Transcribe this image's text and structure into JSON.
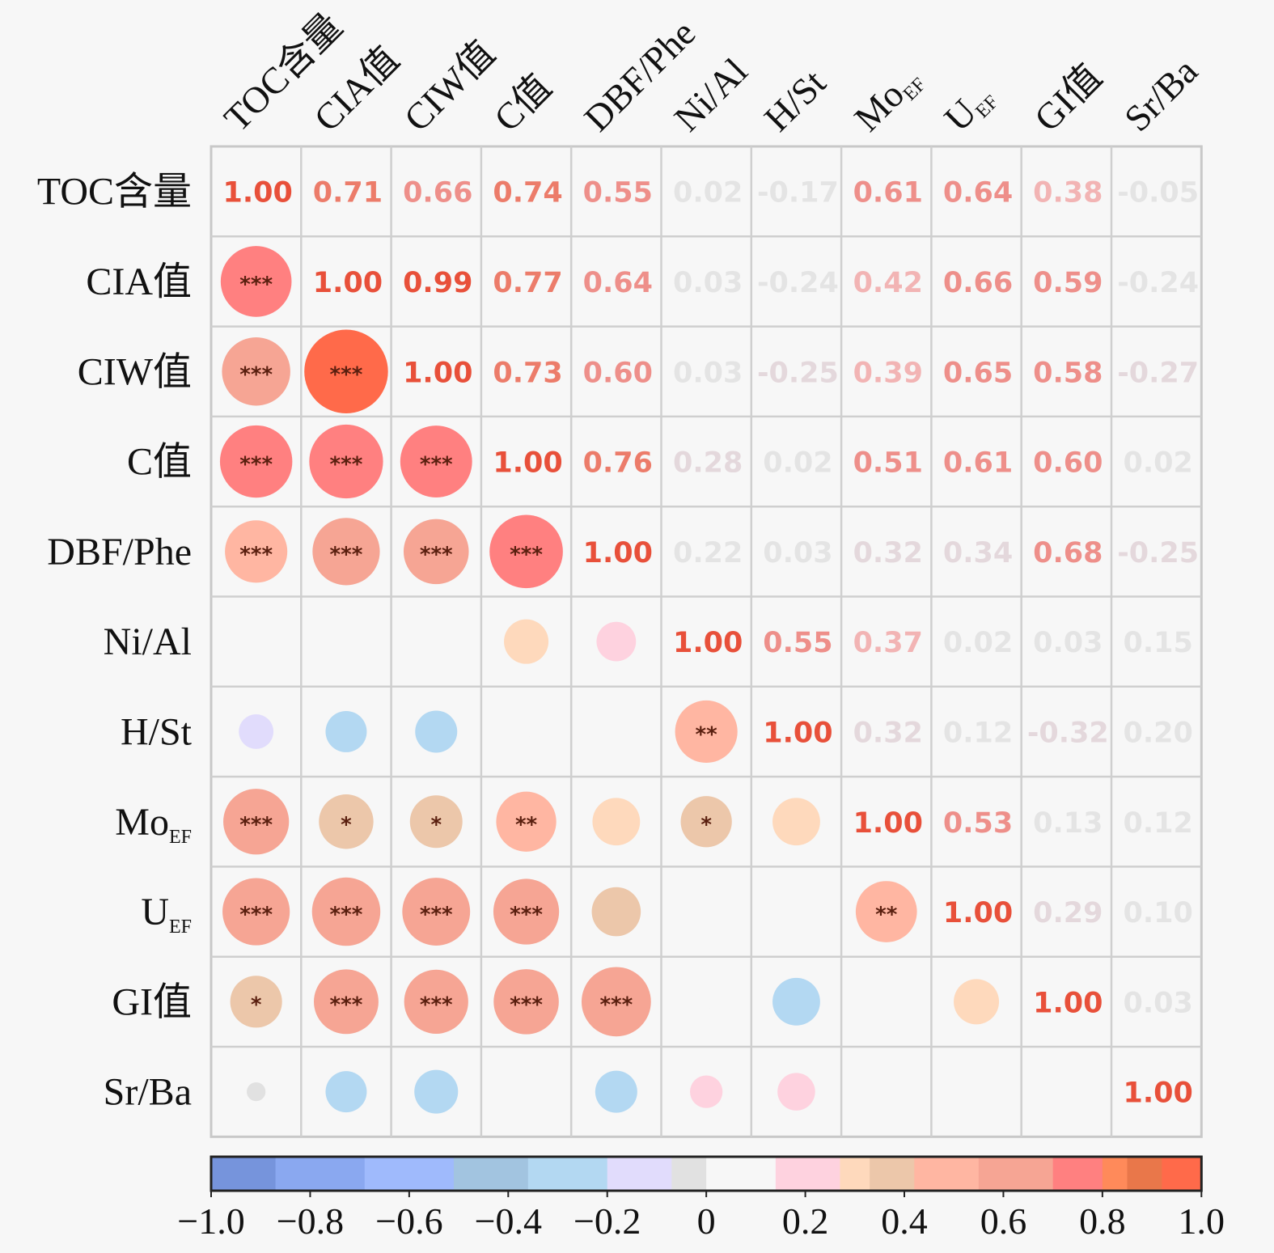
{
  "chart_data": {
    "type": "heatmap",
    "subtype": "correlation-matrix",
    "title": "",
    "variables": [
      {
        "label": "TOC含量",
        "main": "TOC含量",
        "sub": ""
      },
      {
        "label": "CIA值",
        "main": "CIA值",
        "sub": ""
      },
      {
        "label": "CIW值",
        "main": "CIW值",
        "sub": ""
      },
      {
        "label": "C值",
        "main": "C值",
        "sub": ""
      },
      {
        "label": "DBF/Phe",
        "main": "DBF/Phe",
        "sub": ""
      },
      {
        "label": "Ni/Al",
        "main": "Ni/Al",
        "sub": ""
      },
      {
        "label": "H/St",
        "main": "H/St",
        "sub": ""
      },
      {
        "label": "MoEF",
        "main": "Mo",
        "sub": "EF"
      },
      {
        "label": "UEF",
        "main": "U",
        "sub": "EF"
      },
      {
        "label": "GI值",
        "main": "GI值",
        "sub": ""
      },
      {
        "label": "Sr/Ba",
        "main": "Sr/Ba",
        "sub": ""
      }
    ],
    "matrix": [
      [
        1.0,
        0.71,
        0.66,
        0.74,
        0.55,
        0.02,
        -0.17,
        0.61,
        0.64,
        0.38,
        -0.05
      ],
      [
        0.71,
        1.0,
        0.99,
        0.77,
        0.64,
        0.03,
        -0.24,
        0.42,
        0.66,
        0.59,
        -0.24
      ],
      [
        0.66,
        0.99,
        1.0,
        0.73,
        0.6,
        0.03,
        -0.25,
        0.39,
        0.65,
        0.58,
        -0.27
      ],
      [
        0.74,
        0.77,
        0.73,
        1.0,
        0.76,
        0.28,
        0.02,
        0.51,
        0.61,
        0.6,
        0.02
      ],
      [
        0.55,
        0.64,
        0.6,
        0.76,
        1.0,
        0.22,
        0.03,
        0.32,
        0.34,
        0.68,
        -0.25
      ],
      [
        0.02,
        0.03,
        0.03,
        0.28,
        0.22,
        1.0,
        0.55,
        0.37,
        0.02,
        0.03,
        0.15
      ],
      [
        -0.17,
        -0.24,
        -0.25,
        0.02,
        0.03,
        0.55,
        1.0,
        0.32,
        0.12,
        -0.32,
        0.2
      ],
      [
        0.61,
        0.42,
        0.39,
        0.51,
        0.32,
        0.37,
        0.32,
        1.0,
        0.53,
        0.13,
        0.12
      ],
      [
        0.64,
        0.66,
        0.65,
        0.61,
        0.34,
        0.02,
        0.12,
        0.53,
        1.0,
        0.29,
        0.1
      ],
      [
        0.38,
        0.59,
        0.58,
        0.6,
        0.68,
        0.03,
        -0.32,
        0.13,
        0.29,
        1.0,
        0.03
      ],
      [
        -0.05,
        -0.24,
        -0.27,
        0.02,
        -0.25,
        0.15,
        0.2,
        0.12,
        0.1,
        0.03,
        1.0
      ]
    ],
    "significance": [
      [
        "",
        "",
        "",
        "",
        "",
        "",
        "",
        "",
        "",
        "",
        ""
      ],
      [
        "***",
        "",
        "",
        "",
        "",
        "",
        "",
        "",
        "",
        "",
        ""
      ],
      [
        "***",
        "***",
        "",
        "",
        "",
        "",
        "",
        "",
        "",
        "",
        ""
      ],
      [
        "***",
        "***",
        "***",
        "",
        "",
        "",
        "",
        "",
        "",
        "",
        ""
      ],
      [
        "***",
        "***",
        "***",
        "***",
        "",
        "",
        "",
        "",
        "",
        "",
        ""
      ],
      [
        "",
        "",
        "",
        "",
        "",
        "",
        "",
        "",
        "",
        "",
        ""
      ],
      [
        "",
        "",
        "",
        "",
        "",
        "**",
        "",
        "",
        "",
        "",
        ""
      ],
      [
        "***",
        "*",
        "*",
        "**",
        "",
        "*",
        "",
        "",
        "",
        "",
        ""
      ],
      [
        "***",
        "***",
        "***",
        "***",
        "",
        "",
        "",
        "**",
        "",
        "",
        ""
      ],
      [
        "*",
        "***",
        "***",
        "***",
        "***",
        "",
        "",
        "",
        "",
        "",
        ""
      ],
      [
        "",
        "",
        "",
        "",
        "",
        "",
        "",
        "",
        "",
        "",
        ""
      ]
    ],
    "upper_triangle": "numeric-values",
    "lower_triangle": "circles-sized-by-abs-r-with-significance-stars",
    "value_format": "0.00",
    "colorbar": {
      "range": [
        -1.0,
        1.0
      ],
      "ticks": [
        -1.0,
        -0.8,
        -0.6,
        -0.4,
        -0.2,
        0,
        0.2,
        0.4,
        0.6,
        0.8,
        1.0
      ],
      "tick_labels": [
        "−1.0",
        "−0.8",
        "−0.6",
        "−0.4",
        "−0.2",
        "0",
        "0.2",
        "0.4",
        "0.6",
        "0.8",
        "1.0"
      ],
      "placement": "bottom",
      "bins": [
        {
          "from": -1.0,
          "to": -0.87,
          "color": "#7694dc"
        },
        {
          "from": -0.87,
          "to": -0.69,
          "color": "#8aa8f0"
        },
        {
          "from": -0.69,
          "to": -0.51,
          "color": "#9fbafc"
        },
        {
          "from": -0.51,
          "to": -0.51,
          "color": "#9fbafc"
        },
        {
          "from": -0.51,
          "to": -0.36,
          "color": "#a2c4e0"
        },
        {
          "from": -0.36,
          "to": -0.2,
          "color": "#b3d8f2"
        },
        {
          "from": -0.2,
          "to": -0.07,
          "color": "#e1dcfc"
        },
        {
          "from": -0.07,
          "to": 0.0,
          "color": "#e1e1e1"
        },
        {
          "from": 0.0,
          "to": 0.14,
          "color": "#f7f7f7"
        },
        {
          "from": 0.14,
          "to": 0.27,
          "color": "#fed2df"
        },
        {
          "from": 0.27,
          "to": 0.33,
          "color": "#fed9bc"
        },
        {
          "from": 0.33,
          "to": 0.42,
          "color": "#ecc7aa"
        },
        {
          "from": 0.42,
          "to": 0.55,
          "color": "#ffb6a2"
        },
        {
          "from": 0.55,
          "to": 0.7,
          "color": "#f6a594"
        },
        {
          "from": 0.7,
          "to": 0.8,
          "color": "#ff8080"
        },
        {
          "from": 0.8,
          "to": 0.85,
          "color": "#ff8a5a"
        },
        {
          "from": 0.85,
          "to": 0.92,
          "color": "#e9774a"
        },
        {
          "from": 0.92,
          "to": 1.0,
          "color": "#ff6a4a"
        }
      ]
    },
    "grid": true
  }
}
